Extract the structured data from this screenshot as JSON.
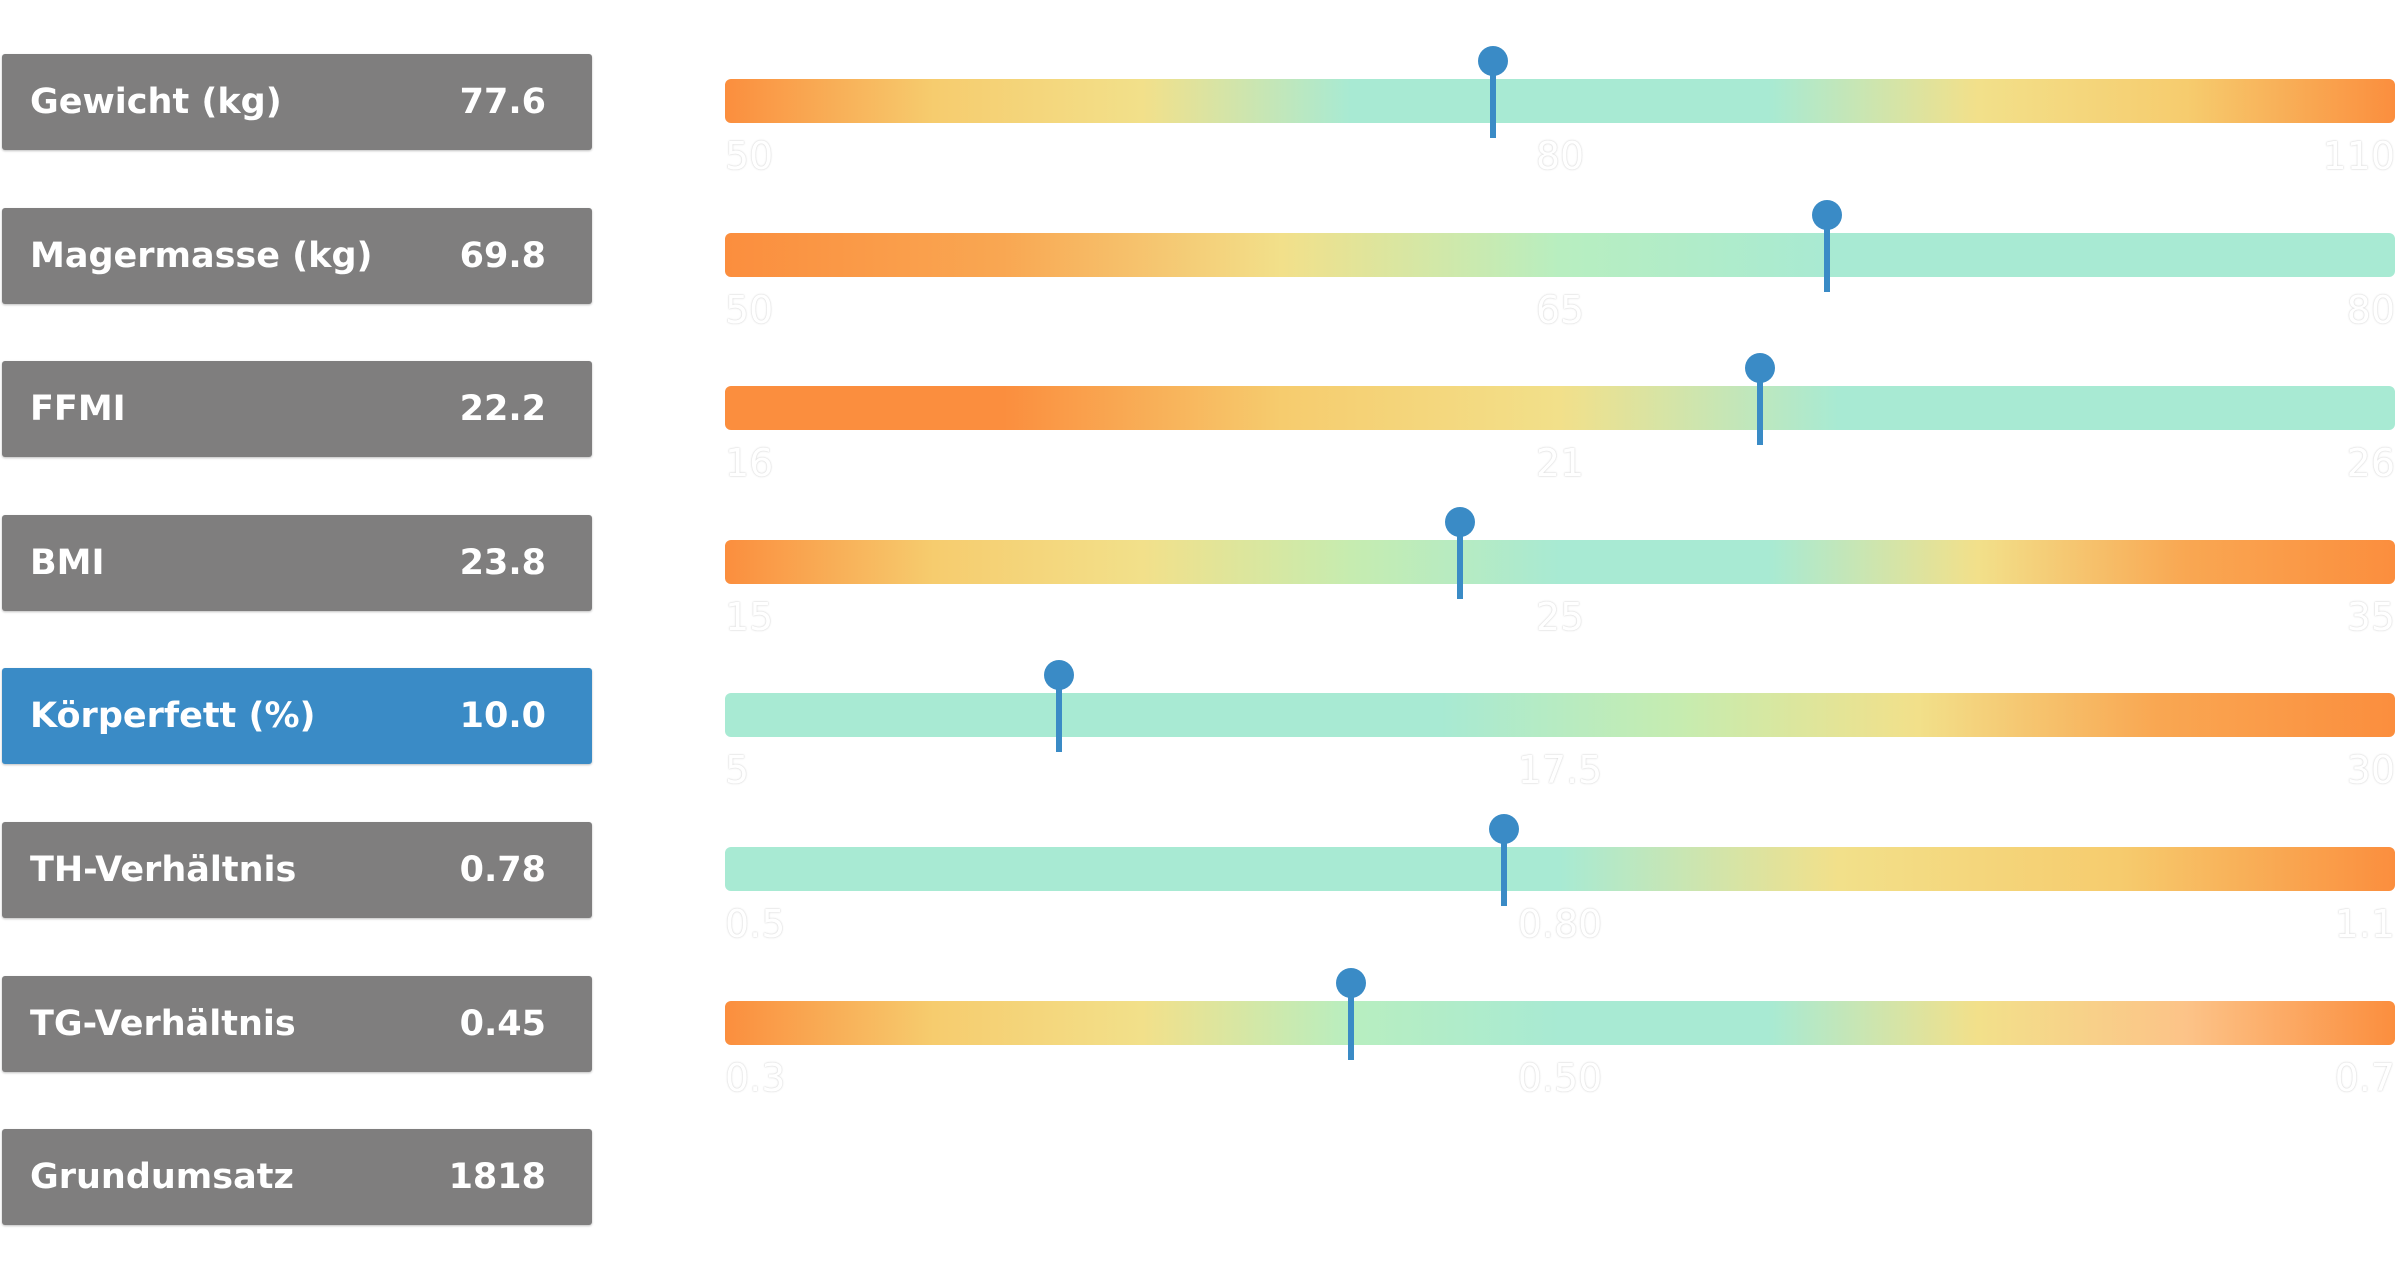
{
  "colors": {
    "label_bg": "#7f7e7e",
    "label_active_bg": "#3a8bc6",
    "marker": "#3a8bc6",
    "good": "#a8ead3",
    "warn": "#f2e08a",
    "bad": "#fb8e3e"
  },
  "metrics": [
    {
      "name": "Gewicht (kg)",
      "value": "77.6",
      "active": false,
      "scale": {
        "min": 50,
        "max": 110,
        "ticks": [
          "50",
          "80",
          "110"
        ],
        "marker": 77.6,
        "gradient": [
          "#fb8e3e",
          "#f6cc6e",
          "#f2e08a",
          "#a8ead3",
          "#a8ead3",
          "#a8ead3",
          "#f2e08a",
          "#f6cc6e",
          "#fb8e3e"
        ]
      }
    },
    {
      "name": "Magermasse (kg)",
      "value": "69.8",
      "active": false,
      "scale": {
        "min": 50,
        "max": 80,
        "ticks": [
          "50",
          "65",
          "80"
        ],
        "marker": 69.8,
        "gradient": [
          "#fb8e3e",
          "#f9a752",
          "#f2e08a",
          "#b8eec0",
          "#a8ead3",
          "#a8ead3",
          "#a8ead3"
        ]
      }
    },
    {
      "name": "FFMI",
      "value": "22.2",
      "active": false,
      "scale": {
        "min": 16,
        "max": 26,
        "ticks": [
          "16",
          "21",
          "26"
        ],
        "marker": 22.2,
        "gradient": [
          "#fb8e3e",
          "#fb8e3e",
          "#f6cc6e",
          "#f2e08a",
          "#a8ead3",
          "#a8ead3",
          "#a8ead3"
        ]
      }
    },
    {
      "name": "BMI",
      "value": "23.8",
      "active": false,
      "scale": {
        "min": 15,
        "max": 35,
        "ticks": [
          "15",
          "25",
          "35"
        ],
        "marker": 23.8,
        "gradient": [
          "#fb8e3e",
          "#f6cc6e",
          "#f2e08a",
          "#c6ecb0",
          "#a8ead3",
          "#a8ead3",
          "#f2e08a",
          "#f9a752",
          "#fb8e3e"
        ]
      }
    },
    {
      "name": "Körperfett (%)",
      "value": "10.0",
      "active": true,
      "scale": {
        "min": 5,
        "max": 30,
        "ticks": [
          "5",
          "17.5",
          "30"
        ],
        "marker": 10.0,
        "gradient": [
          "#a8ead3",
          "#a8ead3",
          "#a8ead3",
          "#a8ead3",
          "#c6ecb0",
          "#f2e08a",
          "#f9a752",
          "#fb8e3e"
        ]
      }
    },
    {
      "name": "TH-Verhältnis",
      "value": "0.78",
      "active": false,
      "scale": {
        "min": 0.5,
        "max": 1.1,
        "ticks": [
          "0.5",
          "0.80",
          "1.1"
        ],
        "marker": 0.78,
        "gradient": [
          "#a8ead3",
          "#a8ead3",
          "#a8ead3",
          "#a8ead3",
          "#f2e08a",
          "#f6cc6e",
          "#fb8e3e"
        ]
      }
    },
    {
      "name": "TG-Verhältnis",
      "value": "0.45",
      "active": false,
      "scale": {
        "min": 0.3,
        "max": 0.7,
        "ticks": [
          "0.3",
          "0.50",
          "0.7"
        ],
        "marker": 0.45,
        "gradient": [
          "#fb8e3e",
          "#f6cc6e",
          "#f2e08a",
          "#b8eec0",
          "#a8ead3",
          "#a8ead3",
          "#f2e08a",
          "#fcc388",
          "#fb8e3e"
        ]
      }
    },
    {
      "name": "Grundumsatz",
      "value": "1818",
      "active": false,
      "scale": null
    }
  ]
}
